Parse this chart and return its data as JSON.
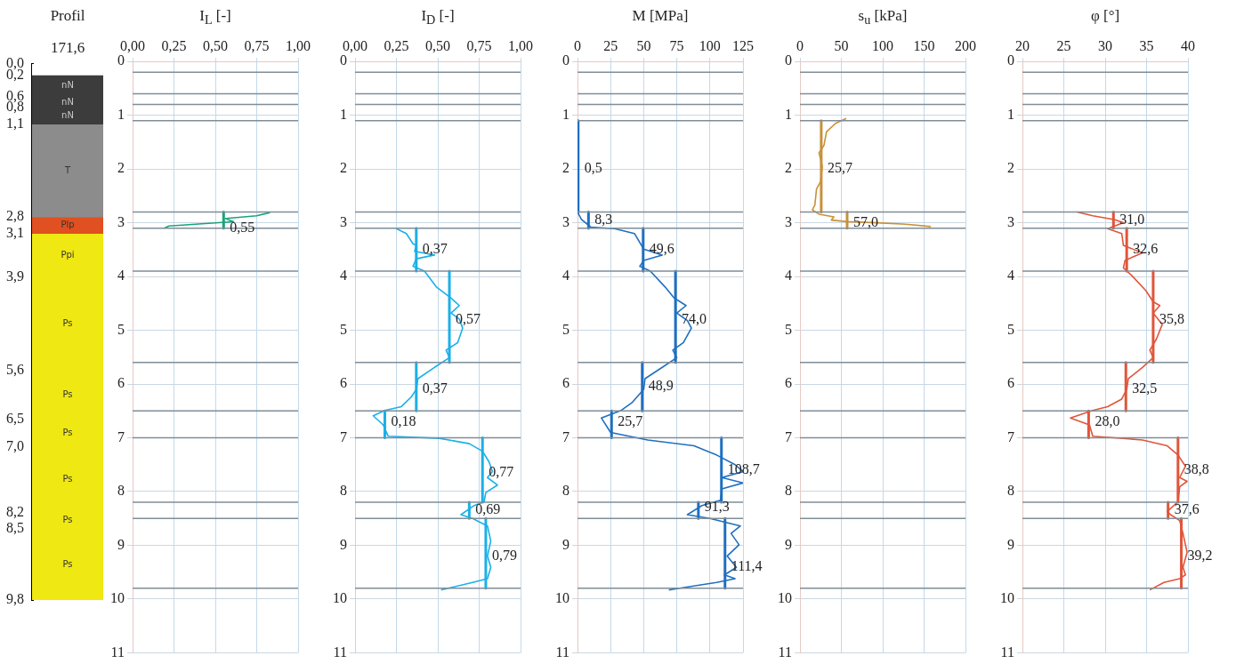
{
  "chart_data": [
    {
      "type": "bar",
      "title": "Profil",
      "subtitle": "171,6",
      "categories": [
        null
      ],
      "stacked": true,
      "series": [
        {
          "color": "#ffffff",
          "values": [
            0.2
          ]
        },
        {
          "name": "nN",
          "color": "#3c3c3c",
          "values": [
            0.4
          ]
        },
        {
          "name": "nN",
          "color": "#3c3c3c",
          "values": [
            0.2
          ]
        },
        {
          "name": "nN",
          "color": "#3c3c3c",
          "values": [
            0.3
          ]
        },
        {
          "name": "T",
          "color": "#8c8c8c",
          "values": [
            1.7
          ]
        },
        {
          "name": "Plp",
          "color": "#e05020",
          "values": [
            0.3
          ]
        },
        {
          "name": "Ppi",
          "color": "#f0e812",
          "values": [
            0.8
          ]
        },
        {
          "name": "Ps",
          "color": "#f0e812",
          "values": [
            1.7
          ]
        },
        {
          "name": "Ps",
          "color": "#f0e812",
          "values": [
            0.9
          ]
        },
        {
          "name": "Ps",
          "color": "#f0e812",
          "values": [
            0.5
          ]
        },
        {
          "name": "Ps",
          "color": "#f0e812",
          "values": [
            1.2
          ]
        },
        {
          "name": "Ps",
          "color": "#f0e812",
          "values": [
            0.3
          ]
        },
        {
          "name": "Ps",
          "color": "#f0e812",
          "values": [
            1.3
          ]
        }
      ],
      "ylim": [
        9.8,
        0
      ],
      "yticks": [
        {
          "value": 0,
          "label": "0,0"
        },
        {
          "value": 0.2,
          "label": "0,2"
        },
        {
          "value": 0.6,
          "label": "0,6"
        },
        {
          "value": 0.8,
          "label": "0,8"
        },
        {
          "value": 1.1,
          "label": "1,1"
        },
        {
          "value": 2.8,
          "label": "2,8"
        },
        {
          "value": 3.1,
          "label": "3,1"
        },
        {
          "value": 3.9,
          "label": "3,9"
        },
        {
          "value": 5.6,
          "label": "5,6"
        },
        {
          "value": 6.5,
          "label": "6,5"
        },
        {
          "value": 7.0,
          "label": "7,0"
        },
        {
          "value": 8.2,
          "label": "8,2"
        },
        {
          "value": 8.5,
          "label": "8,5"
        },
        {
          "value": 9.8,
          "label": "9,8"
        }
      ],
      "tick_labels": "y"
    },
    {
      "type": "line",
      "title": "I$_{L}$ [-]",
      "grid": true,
      "xlim": [
        0,
        1
      ],
      "xticks": [
        {
          "value": 0,
          "label": "0,00"
        },
        {
          "value": 0.25,
          "label": "0,25"
        },
        {
          "value": 0.5,
          "label": "0,50"
        },
        {
          "value": 0.75,
          "label": "0,75"
        },
        {
          "value": 1,
          "label": "1,00"
        }
      ],
      "ylim": [
        11,
        0
      ],
      "yticks": [
        0,
        1,
        2,
        3,
        4,
        5,
        6,
        7,
        8,
        9,
        10,
        11
      ],
      "series": [
        {
          "color": "#1aa37a",
          "x": [
            0.83,
            0.75,
            0.56,
            0.61,
            0.56,
            0.36,
            0.22,
            0.19
          ],
          "values": [
            2.81,
            2.87,
            2.92,
            2.98,
            2.99,
            3.03,
            3.06,
            3.1
          ]
        },
        {
          "color": "#1aa37a",
          "x": [
            0.55,
            0.55
          ],
          "values": [
            2.8,
            3.1
          ]
        }
      ],
      "annotations": [
        {
          "text": "0,55",
          "x": 0.55,
          "y": 3.1
        }
      ],
      "ref_lines": [
        {
          "axis": "y",
          "value": 0.2
        },
        {
          "axis": "y",
          "value": 0.6
        },
        {
          "axis": "y",
          "value": 0.8
        },
        {
          "axis": "y",
          "value": 1.1
        },
        {
          "axis": "y",
          "value": 2.8
        },
        {
          "axis": "y",
          "value": 3.1
        },
        {
          "axis": "y",
          "value": 3.9
        },
        {
          "axis": "y",
          "value": 5.6
        },
        {
          "axis": "y",
          "value": 6.5
        },
        {
          "axis": "y",
          "value": 7.0
        },
        {
          "axis": "y",
          "value": 8.2
        },
        {
          "axis": "y",
          "value": 8.5
        },
        {
          "axis": "y",
          "value": 9.8
        }
      ]
    },
    {
      "type": "line",
      "title": "I$_{D}$ [-]",
      "grid": true,
      "xlim": [
        0,
        1
      ],
      "xticks": [
        {
          "value": 0,
          "label": "0,00"
        },
        {
          "value": 0.25,
          "label": "0,25"
        },
        {
          "value": 0.5,
          "label": "0,50"
        },
        {
          "value": 0.75,
          "label": "0,75"
        },
        {
          "value": 1,
          "label": "1,00"
        }
      ],
      "ylim": [
        11,
        0
      ],
      "yticks": [
        0,
        1,
        2,
        3,
        4,
        5,
        6,
        7,
        8,
        9,
        10,
        11
      ],
      "series": [
        {
          "color": "#1ab0e8",
          "x": [
            0.25,
            0.31,
            0.35,
            0.37,
            0.36,
            0.48,
            0.37,
            0.35,
            0.42,
            0.49,
            0.55,
            0.58,
            0.63,
            0.58,
            0.63,
            0.65,
            0.62,
            0.55,
            0.57,
            0.48,
            0.38,
            0.37,
            0.34,
            0.28,
            0.18,
            0.11,
            0.17,
            0.2,
            0.51,
            0.69,
            0.77,
            0.81,
            0.83,
            0.8,
            0.86,
            0.79,
            0.78,
            0.72,
            0.64,
            0.71,
            0.8,
            0.82,
            0.8,
            0.82,
            0.8,
            0.71,
            0.52
          ],
          "values": [
            3.11,
            3.2,
            3.39,
            3.42,
            3.53,
            3.6,
            3.67,
            3.81,
            3.9,
            4.19,
            4.33,
            4.4,
            4.54,
            4.68,
            4.79,
            4.96,
            5.23,
            5.37,
            5.51,
            5.69,
            5.9,
            6.1,
            6.24,
            6.42,
            6.49,
            6.59,
            6.76,
            6.97,
            7.01,
            7.11,
            7.25,
            7.45,
            7.63,
            7.74,
            7.88,
            8.02,
            8.19,
            8.26,
            8.43,
            8.5,
            8.64,
            8.92,
            9.2,
            9.41,
            9.62,
            9.69,
            9.83
          ]
        },
        {
          "color": "#1ab0e8",
          "x": [
            0.37,
            0.37,
            null,
            0.57,
            0.57,
            null,
            0.37,
            0.37,
            null,
            0.18,
            0.18,
            null,
            0.77,
            0.77,
            null,
            0.69,
            0.69,
            null,
            0.79,
            0.79
          ],
          "values": [
            3.1,
            3.9,
            null,
            3.9,
            5.6,
            null,
            5.6,
            6.5,
            null,
            6.5,
            7.0,
            null,
            7.0,
            8.2,
            null,
            8.2,
            8.5,
            null,
            8.5,
            9.8
          ]
        }
      ],
      "annotations": [
        {
          "text": "0,37",
          "x": 0.37,
          "y": 3.5
        },
        {
          "text": "0,57",
          "x": 0.57,
          "y": 4.8
        },
        {
          "text": "0,37",
          "x": 0.37,
          "y": 6.1
        },
        {
          "text": "0,18",
          "x": 0.18,
          "y": 6.7
        },
        {
          "text": "0,77",
          "x": 0.77,
          "y": 7.65
        },
        {
          "text": "0,69",
          "x": 0.69,
          "y": 8.35
        },
        {
          "text": "0,79",
          "x": 0.79,
          "y": 9.2
        }
      ],
      "ref_lines": [
        {
          "axis": "y",
          "value": 0.2
        },
        {
          "axis": "y",
          "value": 0.6
        },
        {
          "axis": "y",
          "value": 0.8
        },
        {
          "axis": "y",
          "value": 1.1
        },
        {
          "axis": "y",
          "value": 2.8
        },
        {
          "axis": "y",
          "value": 3.1
        },
        {
          "axis": "y",
          "value": 3.9
        },
        {
          "axis": "y",
          "value": 5.6
        },
        {
          "axis": "y",
          "value": 6.5
        },
        {
          "axis": "y",
          "value": 7.0
        },
        {
          "axis": "y",
          "value": 8.2
        },
        {
          "axis": "y",
          "value": 8.5
        },
        {
          "axis": "y",
          "value": 9.8
        }
      ]
    },
    {
      "type": "line",
      "title": "M [MPa]",
      "grid": true,
      "xlim": [
        0,
        125
      ],
      "xticks": [
        0,
        25,
        50,
        75,
        100,
        125
      ],
      "ylim": [
        11,
        0
      ],
      "yticks": [
        0,
        1,
        2,
        3,
        4,
        5,
        6,
        7,
        8,
        9,
        10,
        11
      ],
      "series": [
        {
          "color": "#1f6fc0",
          "x": [
            0,
            0,
            3,
            10,
            28,
            43,
            50,
            64,
            50,
            47,
            55,
            66,
            73,
            82,
            75,
            83,
            86,
            80,
            72,
            75,
            64,
            51,
            50,
            41,
            33,
            18,
            25,
            53,
            88,
            105,
            119,
            125,
            109,
            125,
            109,
            108,
            94,
            83,
            100,
            123,
            116,
            122,
            113,
            120,
            111,
            119,
            105,
            69
          ],
          "values": [
            1.1,
            2.8,
            2.94,
            3.08,
            3.11,
            3.2,
            3.49,
            3.6,
            3.7,
            3.81,
            3.9,
            4.19,
            4.4,
            4.54,
            4.68,
            4.82,
            4.96,
            5.23,
            5.37,
            5.51,
            5.69,
            5.9,
            6.1,
            6.35,
            6.49,
            6.63,
            6.9,
            7.04,
            7.15,
            7.32,
            7.5,
            7.63,
            7.74,
            7.84,
            7.95,
            8.16,
            8.26,
            8.43,
            8.5,
            8.64,
            8.78,
            8.99,
            9.2,
            9.41,
            9.55,
            9.62,
            9.69,
            9.83
          ]
        },
        {
          "color": "#1f6fc0",
          "x": [
            0.5,
            0.5,
            null,
            8.3,
            8.3,
            null,
            49.6,
            49.6,
            null,
            74.0,
            74.0,
            null,
            48.9,
            48.9,
            null,
            25.7,
            25.7,
            null,
            108.7,
            108.7,
            null,
            91.3,
            91.3,
            null,
            111.4,
            111.4
          ],
          "values": [
            1.1,
            2.8,
            null,
            2.8,
            3.1,
            null,
            3.1,
            3.9,
            null,
            3.9,
            5.6,
            null,
            5.6,
            6.5,
            null,
            6.5,
            7.0,
            null,
            7.0,
            8.2,
            null,
            8.2,
            8.5,
            null,
            8.5,
            9.8
          ]
        }
      ],
      "annotations": [
        {
          "text": "0,5",
          "x": 0.5,
          "y": 2.0
        },
        {
          "text": "8,3",
          "x": 8.3,
          "y": 2.95
        },
        {
          "text": "49,6",
          "x": 49.6,
          "y": 3.5
        },
        {
          "text": "74,0",
          "x": 74.0,
          "y": 4.8
        },
        {
          "text": "48,9",
          "x": 48.9,
          "y": 6.05
        },
        {
          "text": "25,7",
          "x": 25.7,
          "y": 6.7
        },
        {
          "text": "108,7",
          "x": 108.7,
          "y": 7.6
        },
        {
          "text": "91,3",
          "x": 91.3,
          "y": 8.3
        },
        {
          "text": "111,4",
          "x": 111.4,
          "y": 9.4
        }
      ],
      "ref_lines": [
        {
          "axis": "y",
          "value": 0.2
        },
        {
          "axis": "y",
          "value": 0.6
        },
        {
          "axis": "y",
          "value": 0.8
        },
        {
          "axis": "y",
          "value": 1.1
        },
        {
          "axis": "y",
          "value": 2.8
        },
        {
          "axis": "y",
          "value": 3.1
        },
        {
          "axis": "y",
          "value": 3.9
        },
        {
          "axis": "y",
          "value": 5.6
        },
        {
          "axis": "y",
          "value": 6.5
        },
        {
          "axis": "y",
          "value": 7.0
        },
        {
          "axis": "y",
          "value": 8.2
        },
        {
          "axis": "y",
          "value": 8.5
        },
        {
          "axis": "y",
          "value": 9.8
        }
      ]
    },
    {
      "type": "line",
      "title": "s$_{u}$ [kPa]",
      "grid": true,
      "xlim": [
        0,
        200
      ],
      "xticks": [
        0,
        50,
        100,
        150,
        200
      ],
      "ylim": [
        11,
        0
      ],
      "yticks": [
        0,
        1,
        2,
        3,
        4,
        5,
        6,
        7,
        8,
        9,
        10,
        11
      ],
      "series": [
        {
          "color": "#c8913a",
          "x": [
            56,
            43,
            32,
            29,
            23,
            27,
            25,
            20,
            18,
            15,
            23,
            41,
            38,
            58,
            93,
            131,
            158
          ],
          "values": [
            1.06,
            1.15,
            1.31,
            1.56,
            1.7,
            1.95,
            2.23,
            2.37,
            2.67,
            2.76,
            2.84,
            2.89,
            2.95,
            2.98,
            3.0,
            3.03,
            3.07
          ]
        },
        {
          "color": "#c8913a",
          "x": [
            25.7,
            25.7,
            null,
            57.0,
            57.0
          ],
          "values": [
            1.1,
            2.8,
            null,
            2.8,
            3.1
          ]
        }
      ],
      "annotations": [
        {
          "text": "25,7",
          "x": 25.7,
          "y": 2.0
        },
        {
          "text": "57,0",
          "x": 57.0,
          "y": 3.0
        }
      ],
      "ref_lines": [
        {
          "axis": "y",
          "value": 0.2
        },
        {
          "axis": "y",
          "value": 0.6
        },
        {
          "axis": "y",
          "value": 0.8
        },
        {
          "axis": "y",
          "value": 1.1
        },
        {
          "axis": "y",
          "value": 2.8
        },
        {
          "axis": "y",
          "value": 3.1
        },
        {
          "axis": "y",
          "value": 3.9
        },
        {
          "axis": "y",
          "value": 5.6
        },
        {
          "axis": "y",
          "value": 6.5
        },
        {
          "axis": "y",
          "value": 7.0
        },
        {
          "axis": "y",
          "value": 8.2
        },
        {
          "axis": "y",
          "value": 8.5
        },
        {
          "axis": "y",
          "value": 9.8
        }
      ]
    },
    {
      "type": "line",
      "title": "φ [°]",
      "grid": true,
      "xlim": [
        20,
        40
      ],
      "xticks": [
        20,
        25,
        30,
        35,
        40
      ],
      "ylim": [
        11,
        0
      ],
      "yticks": [
        0,
        1,
        2,
        3,
        4,
        5,
        6,
        7,
        8,
        9,
        10,
        11
      ],
      "series": [
        {
          "color": "#e0553a",
          "x": [
            26.6,
            28.5,
            31.1,
            32.2,
            30.3,
            32.0,
            32.2,
            34.5,
            32.4,
            32.2,
            33.2,
            34.9,
            35.8,
            36.6,
            35.8,
            36.9,
            36.2,
            35.4,
            35.8,
            34.5,
            32.8,
            32.6,
            32.0,
            30.3,
            28.5,
            25.8,
            28.1,
            28.5,
            34.5,
            37.5,
            38.8,
            39.7,
            39.0,
            39.9,
            39.0,
            38.8,
            37.5,
            37.9,
            39.0,
            39.4,
            39.9,
            39.4,
            39.7,
            39.0,
            37.1,
            35.4
          ],
          "values": [
            2.8,
            2.87,
            2.94,
            3.0,
            3.11,
            3.2,
            3.42,
            3.56,
            3.7,
            3.84,
            3.98,
            4.26,
            4.47,
            4.54,
            4.68,
            4.89,
            5.16,
            5.37,
            5.51,
            5.69,
            5.9,
            6.1,
            6.28,
            6.42,
            6.49,
            6.63,
            6.76,
            6.97,
            7.04,
            7.15,
            7.32,
            7.53,
            7.74,
            7.81,
            7.91,
            8.19,
            8.37,
            8.43,
            8.54,
            8.78,
            9.13,
            9.41,
            9.55,
            9.62,
            9.69,
            9.83
          ]
        },
        {
          "color": "#e0553a",
          "x": [
            31.0,
            31.0,
            null,
            32.6,
            32.6,
            null,
            35.8,
            35.8,
            null,
            32.5,
            32.5,
            null,
            28.0,
            28.0,
            null,
            38.8,
            38.8,
            null,
            37.6,
            37.6,
            null,
            39.2,
            39.2
          ],
          "values": [
            2.8,
            3.1,
            null,
            3.1,
            3.9,
            null,
            3.9,
            5.6,
            null,
            5.6,
            6.5,
            null,
            6.5,
            7.0,
            null,
            7.0,
            8.2,
            null,
            8.2,
            8.5,
            null,
            8.5,
            9.8
          ]
        }
      ],
      "annotations": [
        {
          "text": "31,0",
          "x": 31.0,
          "y": 2.95
        },
        {
          "text": "32,6",
          "x": 32.6,
          "y": 3.5
        },
        {
          "text": "35,8",
          "x": 35.8,
          "y": 4.8
        },
        {
          "text": "32,5",
          "x": 32.5,
          "y": 6.1
        },
        {
          "text": "28,0",
          "x": 28.0,
          "y": 6.7
        },
        {
          "text": "38,8",
          "x": 38.8,
          "y": 7.6
        },
        {
          "text": "37,6",
          "x": 37.6,
          "y": 8.35
        },
        {
          "text": "39,2",
          "x": 39.2,
          "y": 9.2
        }
      ],
      "ref_lines": [
        {
          "axis": "y",
          "value": 0.2
        },
        {
          "axis": "y",
          "value": 0.6
        },
        {
          "axis": "y",
          "value": 0.8
        },
        {
          "axis": "y",
          "value": 1.1
        },
        {
          "axis": "y",
          "value": 2.8
        },
        {
          "axis": "y",
          "value": 3.1
        },
        {
          "axis": "y",
          "value": 3.9
        },
        {
          "axis": "y",
          "value": 5.6
        },
        {
          "axis": "y",
          "value": 6.5
        },
        {
          "axis": "y",
          "value": 7.0
        },
        {
          "axis": "y",
          "value": 8.2
        },
        {
          "axis": "y",
          "value": 8.5
        },
        {
          "axis": "y",
          "value": 9.8
        }
      ]
    }
  ]
}
